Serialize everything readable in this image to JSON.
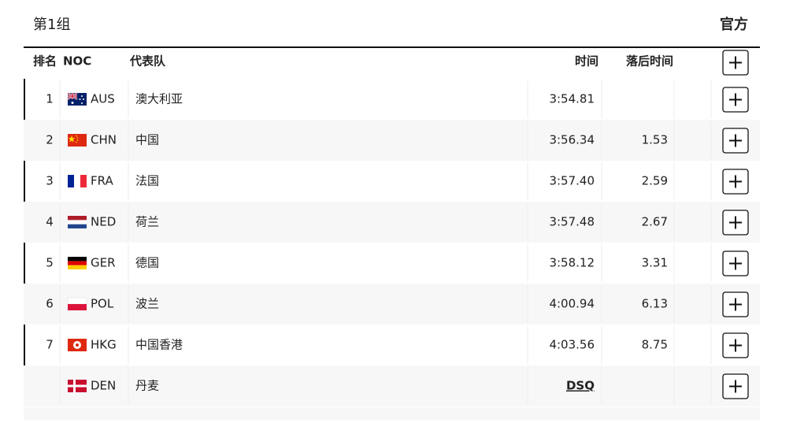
{
  "header": {
    "title": "第1组",
    "official": "官方"
  },
  "columns": {
    "rank": "排名",
    "noc": "NOC",
    "team": "代表队",
    "time": "时间",
    "behind": "落后时间"
  },
  "rows": [
    {
      "rank": "1",
      "noc": "AUS",
      "team": "澳大利亚",
      "time": "3:54.81"
    },
    {
      "rank": "2",
      "noc": "CHN",
      "team": "中国",
      "time": "3:56.34",
      "behind": "1.53"
    },
    {
      "rank": "3",
      "noc": "FRA",
      "team": "法国",
      "time": "3:57.40",
      "behind": "2.59"
    },
    {
      "rank": "4",
      "noc": "NED",
      "team": "荷兰",
      "time": "3:57.48",
      "behind": "2.67"
    },
    {
      "rank": "5",
      "noc": "GER",
      "team": "德国",
      "time": "3:58.12",
      "behind": "3.31"
    },
    {
      "rank": "6",
      "noc": "POL",
      "team": "波兰",
      "time": "4:00.94",
      "behind": "6.13"
    },
    {
      "rank": "7",
      "noc": "HKG",
      "team": "中国香港",
      "time": "4:03.56",
      "behind": "8.75"
    },
    {
      "noc": "DEN",
      "team": "丹麦",
      "time": "DSQ"
    }
  ]
}
